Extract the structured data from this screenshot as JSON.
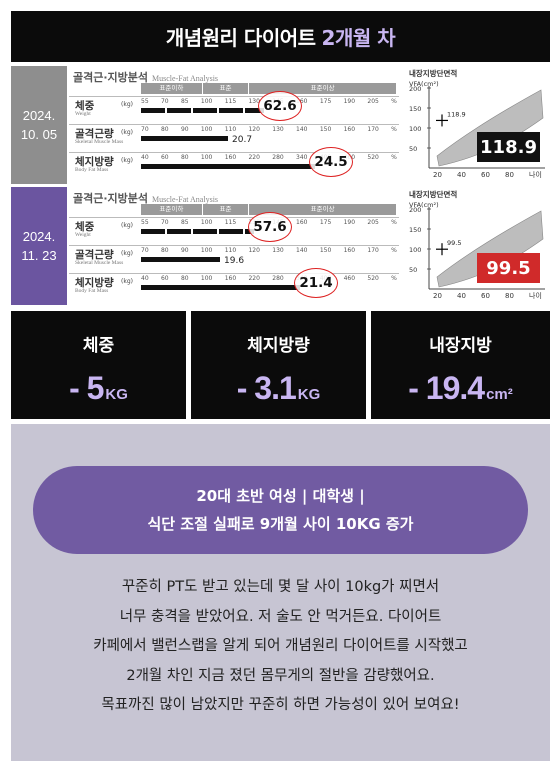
{
  "header": {
    "title_main": "개념원리 다이어트",
    "title_accent": "2개월 차"
  },
  "analysis_title": "골격근·지방분석",
  "analysis_title_en": "Muscle-Fat Analysis",
  "range_headers": [
    "표준이하",
    "표준",
    "표준이상"
  ],
  "rows": [
    {
      "date_line1": "2024.",
      "date_line2": "10. 05",
      "date_color": "#8e8e8e",
      "metrics": [
        {
          "label": "체중",
          "sub": "Weight",
          "unit": "(kg)",
          "ticks": [
            "55",
            "70",
            "85",
            "100",
            "115",
            "130",
            "145",
            "160",
            "175",
            "190",
            "205",
            "%"
          ],
          "value": "62.6",
          "circled": true,
          "fill": 0.48
        },
        {
          "label": "골격근량",
          "sub": "Skeletal Muscle Mass",
          "unit": "(kg)",
          "ticks": [
            "70",
            "80",
            "90",
            "100",
            "110",
            "120",
            "130",
            "140",
            "150",
            "160",
            "170",
            "%"
          ],
          "value": "20.7",
          "circled": false,
          "fill": 0.34
        },
        {
          "label": "체지방량",
          "sub": "Body Fat Mass",
          "unit": "(kg)",
          "ticks": [
            "40",
            "60",
            "80",
            "100",
            "160",
            "220",
            "280",
            "340",
            "400",
            "460",
            "520",
            "%"
          ],
          "value": "24.5",
          "circled": true,
          "fill": 0.68
        }
      ],
      "vfa_title": "내장지방단면적",
      "vfa_label": "VFA(cm²)",
      "vfa_point_label": "118.9",
      "vfa_value": "118.9",
      "vfa_box_color": "#111111",
      "vfa_y_ticks": [
        "200",
        "150",
        "100",
        "50"
      ],
      "vfa_x_ticks": [
        "20",
        "40",
        "60",
        "80",
        "나이"
      ]
    },
    {
      "date_line1": "2024.",
      "date_line2": "11. 23",
      "date_color": "#6b55a0",
      "metrics": [
        {
          "label": "체중",
          "sub": "Weight",
          "unit": "(kg)",
          "ticks": [
            "55",
            "70",
            "85",
            "100",
            "115",
            "130",
            "145",
            "160",
            "175",
            "190",
            "205",
            "%"
          ],
          "value": "57.6",
          "circled": true,
          "fill": 0.44
        },
        {
          "label": "골격근량",
          "sub": "Skeletal Muscle Mass",
          "unit": "(kg)",
          "ticks": [
            "70",
            "80",
            "90",
            "100",
            "110",
            "120",
            "130",
            "140",
            "150",
            "160",
            "170",
            "%"
          ],
          "value": "19.6",
          "circled": false,
          "fill": 0.31
        },
        {
          "label": "체지방량",
          "sub": "Body Fat Mass",
          "unit": "(kg)",
          "ticks": [
            "40",
            "60",
            "80",
            "100",
            "160",
            "220",
            "280",
            "340",
            "400",
            "460",
            "520",
            "%"
          ],
          "value": "21.4",
          "circled": true,
          "fill": 0.62
        }
      ],
      "vfa_title": "내장지방단면적",
      "vfa_label": "VFA(cm²)",
      "vfa_point_label": "99.5",
      "vfa_value": "99.5",
      "vfa_box_color": "#d02a2a",
      "vfa_y_ticks": [
        "200",
        "150",
        "100",
        "50"
      ],
      "vfa_x_ticks": [
        "20",
        "40",
        "60",
        "80",
        "나이"
      ]
    }
  ],
  "stats": [
    {
      "label": "체중",
      "value": "- 5",
      "unit": "KG"
    },
    {
      "label": "체지방량",
      "value": "- 3.1",
      "unit": "KG"
    },
    {
      "label": "내장지방",
      "value": "- 19.4",
      "unit": "cm²"
    }
  ],
  "profile": {
    "line1": "20대 초반 여성 | 대학생 |",
    "line2": "식단 조절 실패로 9개월 사이 10KG 증가"
  },
  "story": [
    "꾸준히 PT도 받고 있는데 몇 달 사이 10kg가 찌면서",
    "너무 충격을 받았어요. 저 술도 안 먹거든요. 다이어트",
    "카페에서 밸런스랩을 알게 되어 개념원리 다이어트를 시작했고",
    "2개월 차인 지금 졌던 몸무게의 절반을 감량했어요.",
    "목표까진 많이 남았지만 꾸준히 하면 가능성이 있어 보여요!"
  ]
}
